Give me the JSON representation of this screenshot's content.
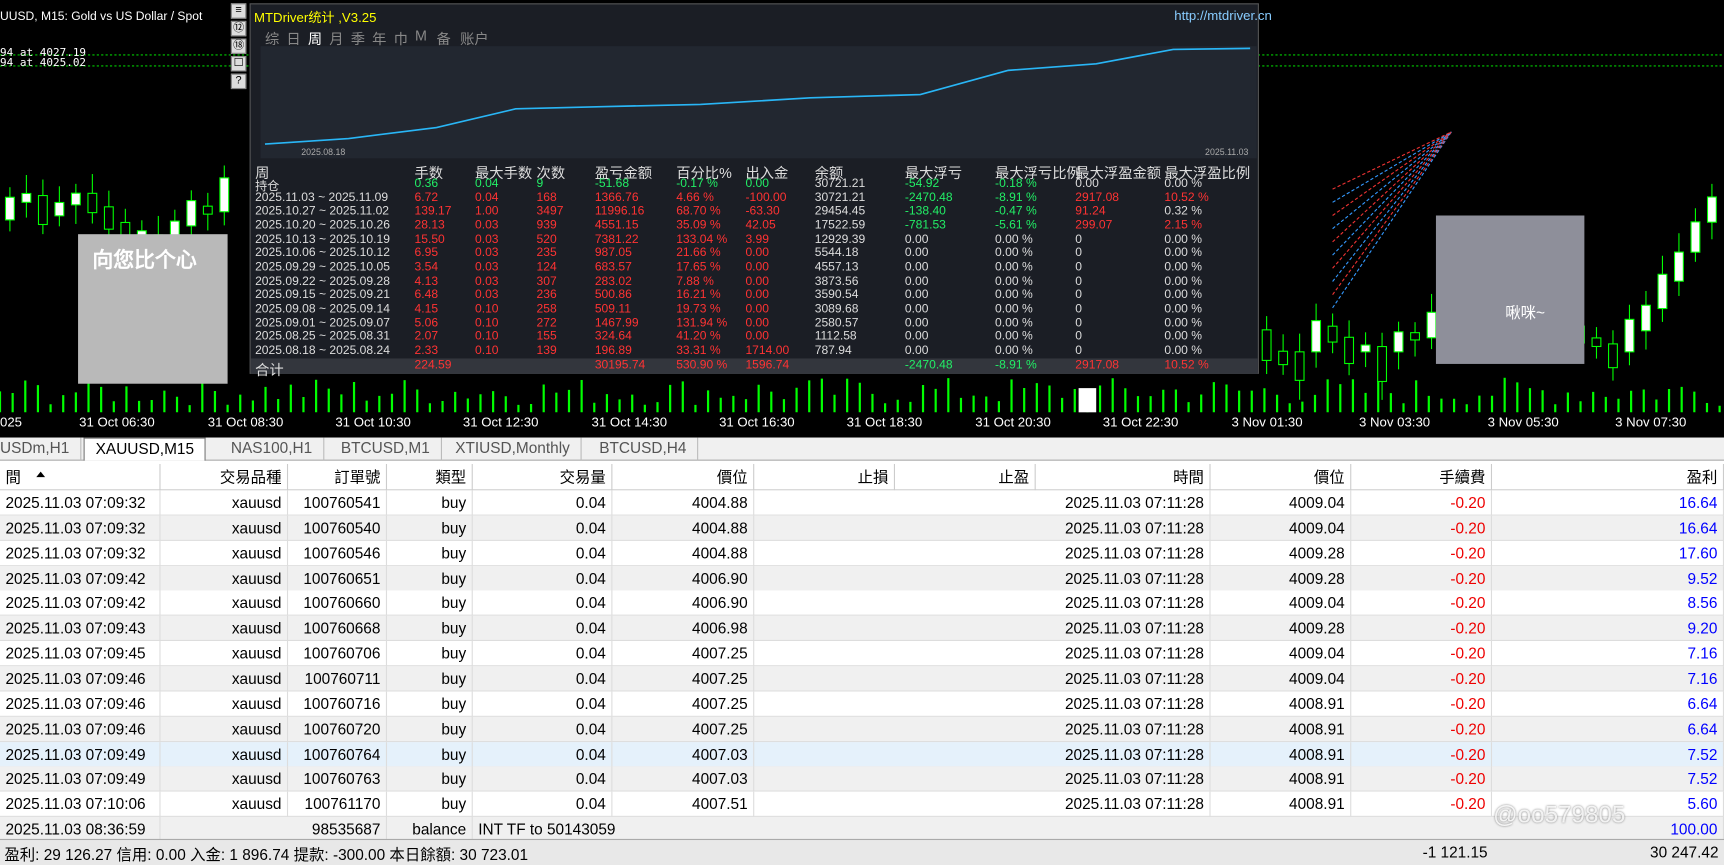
{
  "chart": {
    "title": "UUSD, M15:  Gold vs US Dollar / Spot",
    "price_labels": [
      "94 at 4027.19",
      "94 at 4025.02"
    ],
    "time_labels": [
      "025",
      "31 Oct 06:30",
      "31 Oct 08:30",
      "31 Oct 10:30",
      "31 Oct 12:30",
      "31 Oct 14:30",
      "31 Oct 16:30",
      "31 Oct 18:30",
      "31 Oct 20:30",
      "31 Oct 22:30",
      "3 Nov 01:30",
      "3 Nov 03:30",
      "3 Nov 05:30",
      "3 Nov 07:30"
    ]
  },
  "panel": {
    "title": "MTDriver统计 ,V3.25",
    "url": "http://mtdriver.cn",
    "tabs": [
      "综",
      "日",
      "周",
      "月",
      "季",
      "年",
      "巾",
      "M",
      "备",
      "账户"
    ],
    "active_tab": 2,
    "curve_start": "2025.08.18",
    "curve_end": "2025.11.03",
    "headers": [
      "周",
      "手数",
      "最大手数",
      "次数",
      "盈亏金额",
      "百分比%",
      "出入金",
      "余额",
      "最大浮亏",
      "最大浮亏比例",
      "最大浮盈金额",
      "最大浮盈比例"
    ],
    "rows": [
      {
        "label": "持仓",
        "color": "green",
        "cells": [
          "0.36",
          "0.04",
          "9",
          "-51.68",
          "-0.17 %",
          "0.00",
          "30721.21",
          "-54.92",
          "-0.18 %",
          "0.00",
          "0.00 %"
        ]
      },
      {
        "label": "2025.11.03 ~ 2025.11.09",
        "color": "red",
        "cells": [
          "6.72",
          "0.04",
          "168",
          "1366.76",
          "4.66 %",
          "-100.00",
          "30721.21",
          "-2470.48",
          "-8.91 %",
          "2917.08",
          "10.52 %"
        ]
      },
      {
        "label": "2025.10.27 ~ 2025.11.02",
        "color": "red",
        "cells": [
          "139.17",
          "1.00",
          "3497",
          "11996.16",
          "68.70 %",
          "-63.30",
          "29454.45",
          "-138.40",
          "-0.47 %",
          "91.24",
          "0.32 %"
        ]
      },
      {
        "label": "2025.10.20 ~ 2025.10.26",
        "color": "red",
        "cells": [
          "28.13",
          "0.03",
          "939",
          "4551.15",
          "35.09 %",
          "42.05",
          "17522.59",
          "-781.53",
          "-5.61 %",
          "299.07",
          "2.15 %"
        ]
      },
      {
        "label": "2025.10.13 ~ 2025.10.19",
        "color": "red",
        "cells": [
          "15.50",
          "0.03",
          "520",
          "7381.22",
          "133.04 %",
          "3.99",
          "12929.39",
          "0.00",
          "0.00 %",
          "0",
          "0.00 %"
        ]
      },
      {
        "label": "2025.10.06 ~ 2025.10.12",
        "color": "red",
        "cells": [
          "6.95",
          "0.03",
          "235",
          "987.05",
          "21.66 %",
          "0.00",
          "5544.18",
          "0.00",
          "0.00 %",
          "0",
          "0.00 %"
        ]
      },
      {
        "label": "2025.09.29 ~ 2025.10.05",
        "color": "red",
        "cells": [
          "3.54",
          "0.03",
          "124",
          "683.57",
          "17.65 %",
          "0.00",
          "4557.13",
          "0.00",
          "0.00 %",
          "0",
          "0.00 %"
        ]
      },
      {
        "label": "2025.09.22 ~ 2025.09.28",
        "color": "red",
        "cells": [
          "4.13",
          "0.03",
          "307",
          "283.02",
          "7.88 %",
          "0.00",
          "3873.56",
          "0.00",
          "0.00 %",
          "0",
          "0.00 %"
        ]
      },
      {
        "label": "2025.09.15 ~ 2025.09.21",
        "color": "red",
        "cells": [
          "6.48",
          "0.03",
          "236",
          "500.86",
          "16.21 %",
          "0.00",
          "3590.54",
          "0.00",
          "0.00 %",
          "0",
          "0.00 %"
        ]
      },
      {
        "label": "2025.09.08 ~ 2025.09.14",
        "color": "red",
        "cells": [
          "4.15",
          "0.10",
          "258",
          "509.11",
          "19.73 %",
          "0.00",
          "3089.68",
          "0.00",
          "0.00 %",
          "0",
          "0.00 %"
        ]
      },
      {
        "label": "2025.09.01 ~ 2025.09.07",
        "color": "red",
        "cells": [
          "5.06",
          "0.10",
          "272",
          "1467.99",
          "131.94 %",
          "0.00",
          "2580.57",
          "0.00",
          "0.00 %",
          "0",
          "0.00 %"
        ]
      },
      {
        "label": "2025.08.25 ~ 2025.08.31",
        "color": "red",
        "cells": [
          "2.07",
          "0.10",
          "155",
          "324.64",
          "41.20 %",
          "0.00",
          "1112.58",
          "0.00",
          "0.00 %",
          "0",
          "0.00 %"
        ]
      },
      {
        "label": "2025.08.18 ~ 2025.08.24",
        "color": "red",
        "cells": [
          "2.33",
          "0.10",
          "139",
          "196.89",
          "33.31 %",
          "1714.00",
          "787.94",
          "0.00",
          "0.00 %",
          "0",
          "0.00 %"
        ]
      },
      {
        "label": "合计",
        "color": "red",
        "cells": [
          "224.59",
          null,
          null,
          "30195.74",
          "530.90 %",
          "1596.74",
          null,
          "-2470.48",
          "-8.91 %",
          "2917.08",
          "10.52 %"
        ]
      }
    ]
  },
  "stickers": [
    "向您比个心",
    "啾咪~"
  ],
  "tabs": {
    "items": [
      "USDm,H1",
      "XAUUSD,M15",
      "NAS100,H1",
      "BTCUSD,M1",
      "XTIUSD,Monthly",
      "BTCUSD,H4"
    ],
    "active": 1
  },
  "trades": {
    "headers": [
      "間",
      "交易品種",
      "訂單號",
      "類型",
      "交易量",
      "價位",
      "止損",
      "止盈",
      "時間",
      "價位",
      "手續費",
      "盈利"
    ],
    "highlight": 10,
    "rows": [
      [
        "2025.11.03 07:09:32",
        "xauusd",
        "100760541",
        "buy",
        "0.04",
        "4004.88",
        null,
        null,
        "2025.11.03 07:11:28",
        "4009.04",
        "-0.20",
        "16.64"
      ],
      [
        "2025.11.03 07:09:32",
        "xauusd",
        "100760540",
        "buy",
        "0.04",
        "4004.88",
        null,
        null,
        "2025.11.03 07:11:28",
        "4009.04",
        "-0.20",
        "16.64"
      ],
      [
        "2025.11.03 07:09:32",
        "xauusd",
        "100760546",
        "buy",
        "0.04",
        "4004.88",
        null,
        null,
        "2025.11.03 07:11:28",
        "4009.28",
        "-0.20",
        "17.60"
      ],
      [
        "2025.11.03 07:09:42",
        "xauusd",
        "100760651",
        "buy",
        "0.04",
        "4006.90",
        null,
        null,
        "2025.11.03 07:11:28",
        "4009.28",
        "-0.20",
        "9.52"
      ],
      [
        "2025.11.03 07:09:42",
        "xauusd",
        "100760660",
        "buy",
        "0.04",
        "4006.90",
        null,
        null,
        "2025.11.03 07:11:28",
        "4009.04",
        "-0.20",
        "8.56"
      ],
      [
        "2025.11.03 07:09:43",
        "xauusd",
        "100760668",
        "buy",
        "0.04",
        "4006.98",
        null,
        null,
        "2025.11.03 07:11:28",
        "4009.28",
        "-0.20",
        "9.20"
      ],
      [
        "2025.11.03 07:09:45",
        "xauusd",
        "100760706",
        "buy",
        "0.04",
        "4007.25",
        null,
        null,
        "2025.11.03 07:11:28",
        "4009.04",
        "-0.20",
        "7.16"
      ],
      [
        "2025.11.03 07:09:46",
        "xauusd",
        "100760711",
        "buy",
        "0.04",
        "4007.25",
        null,
        null,
        "2025.11.03 07:11:28",
        "4009.04",
        "-0.20",
        "7.16"
      ],
      [
        "2025.11.03 07:09:46",
        "xauusd",
        "100760716",
        "buy",
        "0.04",
        "4007.25",
        null,
        null,
        "2025.11.03 07:11:28",
        "4008.91",
        "-0.20",
        "6.64"
      ],
      [
        "2025.11.03 07:09:46",
        "xauusd",
        "100760720",
        "buy",
        "0.04",
        "4007.25",
        null,
        null,
        "2025.11.03 07:11:28",
        "4008.91",
        "-0.20",
        "6.64"
      ],
      [
        "2025.11.03 07:09:49",
        "xauusd",
        "100760764",
        "buy",
        "0.04",
        "4007.03",
        null,
        null,
        "2025.11.03 07:11:28",
        "4008.91",
        "-0.20",
        "7.52"
      ],
      [
        "2025.11.03 07:09:49",
        "xauusd",
        "100760763",
        "buy",
        "0.04",
        "4007.03",
        null,
        null,
        "2025.11.03 07:11:28",
        "4008.91",
        "-0.20",
        "7.52"
      ],
      [
        "2025.11.03 07:10:06",
        "xauusd",
        "100761170",
        "buy",
        "0.04",
        "4007.51",
        null,
        null,
        "2025.11.03 07:11:28",
        "4008.91",
        "-0.20",
        "5.60"
      ],
      [
        "2025.11.03 08:36:59",
        null,
        "98535687",
        "balance",
        "INT TF to 50143059",
        null,
        null,
        null,
        null,
        null,
        null,
        "100.00"
      ]
    ]
  },
  "footer": {
    "summary": "盈利: 29 126.27  信用: 0.00  入金: 1 896.74  提款: -300.00  本日餘額: 30 723.01",
    "commission": "-1 121.15",
    "profit": "30 247.42"
  },
  "watermark": "@oo579805"
}
